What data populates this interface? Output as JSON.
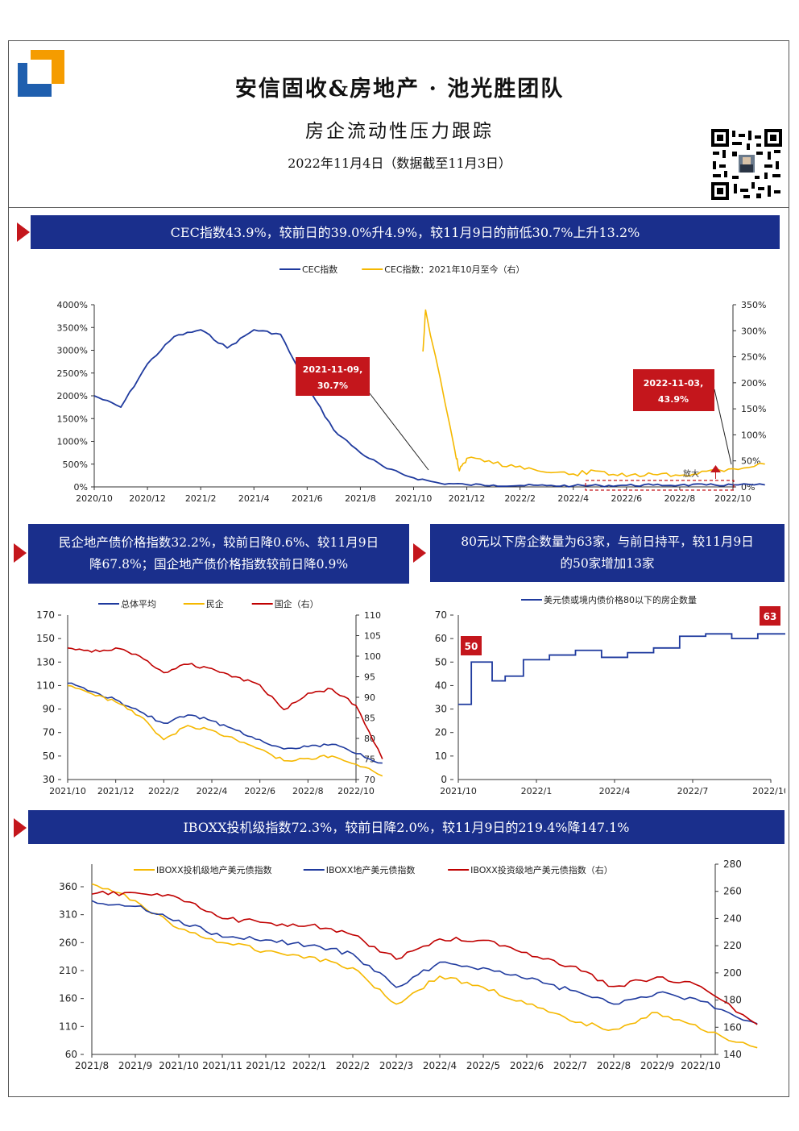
{
  "header": {
    "title": "安信固收&房地产 · 池光胜团队",
    "subtitle": "房企流动性压力跟踪",
    "date": "2022年11月4日（数据截至11月3日）"
  },
  "colors": {
    "navy": "#1a2f8c",
    "red": "#c4161c",
    "blue": "#1f3a9e",
    "yellow": "#f5b800",
    "darkred": "#c00000"
  },
  "icons": {
    "logo": "anxin-logo",
    "qr": "qr-code-icon",
    "arrow": "red-triangle-icon"
  },
  "banners": {
    "b1": "CEC指数43.9%，较前日的39.0%升4.9%，较11月9日的前低30.7%上升13.2%",
    "b2_line1": "民企地产债价格指数32.2%，较前日降0.6%、较11月9日",
    "b2_line2": "降67.8%；国企地产债价格指数较前日降0.9%",
    "b3_line1": "80元以下房企数量为63家，与前日持平，较11月9日",
    "b3_line2": "的50家增加13家",
    "b4": "IBOXX投机级指数72.3%，较前日降2.0%，较11月9日的219.4%降147.1%"
  },
  "chart_data": [
    {
      "type": "line",
      "legend_position": "top",
      "x_ticks": [
        "2020/10",
        "2020/12",
        "2021/2",
        "2021/4",
        "2021/6",
        "2021/8",
        "2021/10",
        "2021/12",
        "2022/2",
        "2022/4",
        "2022/6",
        "2022/8",
        "2022/10"
      ],
      "y_ticks_left": [
        "4000%",
        "3500%",
        "3000%",
        "2500%",
        "2000%",
        "1500%",
        "1000%",
        "500%",
        "0%"
      ],
      "y_ticks_right": [
        "350%",
        "300%",
        "250%",
        "200%",
        "150%",
        "100%",
        "50%",
        "0%"
      ],
      "ylim": [
        0,
        4000
      ],
      "y2lim": [
        0,
        350
      ],
      "series": [
        {
          "name": "CEC指数",
          "axis": "left",
          "color": "#1f3a9e",
          "x": [
            "2020/10",
            "2020/11",
            "2020/12",
            "2021/1",
            "2021/2",
            "2021/3",
            "2021/4",
            "2021/5",
            "2021/6",
            "2021/7",
            "2021/8",
            "2021/9",
            "2021/10",
            "2021/11",
            "2021/12",
            "2022/1",
            "2022/2",
            "2022/3",
            "2022/4",
            "2022/5",
            "2022/6",
            "2022/7",
            "2022/8",
            "2022/9",
            "2022/10",
            "2022/11"
          ],
          "values": [
            2000,
            1750,
            2700,
            3300,
            3450,
            3050,
            3450,
            3350,
            2200,
            1250,
            750,
            400,
            200,
            80,
            50,
            40,
            30,
            28,
            25,
            30,
            35,
            40,
            40,
            42,
            44,
            44
          ]
        },
        {
          "name": "CEC指数：2021年10月至今（右）",
          "axis": "right",
          "color": "#f5b800",
          "x": [
            "2021/10",
            "2021/10",
            "2021/11",
            "2021/11",
            "2021/12",
            "2022/1",
            "2022/2",
            "2022/3",
            "2022/4",
            "2022/5",
            "2022/6",
            "2022/7",
            "2022/8",
            "2022/9",
            "2022/10",
            "2022/11"
          ],
          "values": [
            260,
            340,
            70,
            31,
            55,
            45,
            40,
            28,
            25,
            30,
            20,
            24,
            22,
            30,
            35,
            43.9
          ]
        }
      ],
      "annotations": [
        {
          "label_line1": "2021-11-09,",
          "label_line2": "30.7%"
        },
        {
          "label_line1": "2022-11-03,",
          "label_line2": "43.9%"
        },
        {
          "label": "放大"
        }
      ]
    },
    {
      "type": "line",
      "legend_position": "top",
      "x_ticks": [
        "2021/10",
        "2021/12",
        "2022/2",
        "2022/4",
        "2022/6",
        "2022/8",
        "2022/10"
      ],
      "y_ticks_left": [
        "170",
        "150",
        "130",
        "110",
        "90",
        "70",
        "50",
        "30"
      ],
      "y_ticks_right": [
        "110",
        "105",
        "100",
        "95",
        "90",
        "85",
        "80",
        "75",
        "70"
      ],
      "ylim": [
        30,
        170
      ],
      "y2lim": [
        70,
        110
      ],
      "series": [
        {
          "name": "总体平均",
          "axis": "left",
          "color": "#1f3a9e",
          "x": [
            "2021/10",
            "2021/11",
            "2021/12",
            "2022/1",
            "2022/2",
            "2022/3",
            "2022/4",
            "2022/5",
            "2022/6",
            "2022/7",
            "2022/8",
            "2022/9",
            "2022/10",
            "2022/11"
          ],
          "values": [
            112,
            105,
            98,
            88,
            78,
            85,
            80,
            72,
            64,
            56,
            58,
            60,
            52,
            44
          ]
        },
        {
          "name": "民企",
          "axis": "left",
          "color": "#f5b800",
          "x": [
            "2021/10",
            "2021/11",
            "2021/12",
            "2022/1",
            "2022/2",
            "2022/3",
            "2022/4",
            "2022/5",
            "2022/6",
            "2022/7",
            "2022/8",
            "2022/9",
            "2022/10",
            "2022/11"
          ],
          "values": [
            110,
            103,
            96,
            84,
            64,
            76,
            72,
            64,
            56,
            46,
            48,
            50,
            43,
            33
          ]
        },
        {
          "name": "国企（右）",
          "axis": "right",
          "color": "#c00000",
          "x": [
            "2021/10",
            "2021/11",
            "2021/12",
            "2022/1",
            "2022/2",
            "2022/3",
            "2022/4",
            "2022/5",
            "2022/6",
            "2022/7",
            "2022/8",
            "2022/9",
            "2022/10",
            "2022/11"
          ],
          "values": [
            102,
            101,
            102,
            100,
            96,
            98,
            97,
            95,
            93,
            87,
            91,
            92,
            88,
            75
          ]
        }
      ]
    },
    {
      "type": "line",
      "legend_position": "top",
      "x_ticks": [
        "2021/10",
        "2022/1",
        "2022/4",
        "2022/7",
        "2022/10"
      ],
      "y_ticks_left": [
        "70",
        "60",
        "50",
        "40",
        "30",
        "20",
        "10",
        "0"
      ],
      "ylim": [
        0,
        70
      ],
      "series": [
        {
          "name": "美元债或境内债价格80以下的房企数量",
          "axis": "left",
          "color": "#1f3a9e",
          "x": [
            "2021/10",
            "2021/11",
            "2021/11",
            "2021/12",
            "2022/1",
            "2022/2",
            "2022/3",
            "2022/4",
            "2022/5",
            "2022/6",
            "2022/7",
            "2022/8",
            "2022/9",
            "2022/10",
            "2022/11"
          ],
          "values": [
            32,
            50,
            42,
            44,
            51,
            53,
            55,
            52,
            54,
            56,
            61,
            62,
            60,
            62,
            63
          ]
        }
      ],
      "annotations": [
        {
          "label": "50"
        },
        {
          "label": "63"
        }
      ]
    },
    {
      "type": "line",
      "legend_position": "top",
      "x_ticks": [
        "2021/8",
        "2021/9",
        "2021/10",
        "2021/11",
        "2021/12",
        "2022/1",
        "2022/2",
        "2022/3",
        "2022/4",
        "2022/5",
        "2022/6",
        "2022/7",
        "2022/8",
        "2022/9",
        "2022/10"
      ],
      "y_ticks_left": [
        "360",
        "310",
        "260",
        "210",
        "160",
        "110",
        "60"
      ],
      "y_ticks_right": [
        "280",
        "260",
        "240",
        "220",
        "200",
        "180",
        "160",
        "140"
      ],
      "ylim": [
        60,
        360
      ],
      "y2lim": [
        140,
        280
      ],
      "series": [
        {
          "name": "IBOXX投机级地产美元债指数",
          "axis": "left",
          "color": "#f5b800",
          "x": [
            "2021/8",
            "2021/9",
            "2021/10",
            "2021/11",
            "2021/12",
            "2022/1",
            "2022/2",
            "2022/3",
            "2022/4",
            "2022/5",
            "2022/6",
            "2022/7",
            "2022/8",
            "2022/9",
            "2022/10",
            "2022/11"
          ],
          "values": [
            365,
            335,
            285,
            260,
            245,
            235,
            215,
            150,
            200,
            180,
            150,
            120,
            105,
            135,
            105,
            72
          ]
        },
        {
          "name": "IBOXX地产美元债指数",
          "axis": "left",
          "color": "#1f3a9e",
          "x": [
            "2021/8",
            "2021/9",
            "2021/10",
            "2021/11",
            "2021/12",
            "2022/1",
            "2022/2",
            "2022/3",
            "2022/4",
            "2022/5",
            "2022/6",
            "2022/7",
            "2022/8",
            "2022/9",
            "2022/10",
            "2022/11"
          ],
          "values": [
            335,
            325,
            300,
            270,
            265,
            255,
            240,
            180,
            225,
            215,
            195,
            175,
            150,
            170,
            155,
            115
          ]
        },
        {
          "name": "IBOXX投资级地产美元债指数（右）",
          "axis": "right",
          "color": "#c00000",
          "x": [
            "2021/8",
            "2021/9",
            "2021/10",
            "2021/11",
            "2021/12",
            "2022/1",
            "2022/2",
            "2022/3",
            "2022/4",
            "2022/5",
            "2022/6",
            "2022/7",
            "2022/8",
            "2022/9",
            "2022/10",
            "2022/11"
          ],
          "values": [
            258,
            259,
            255,
            240,
            237,
            235,
            228,
            210,
            225,
            224,
            215,
            205,
            190,
            197,
            190,
            162
          ]
        }
      ]
    }
  ]
}
